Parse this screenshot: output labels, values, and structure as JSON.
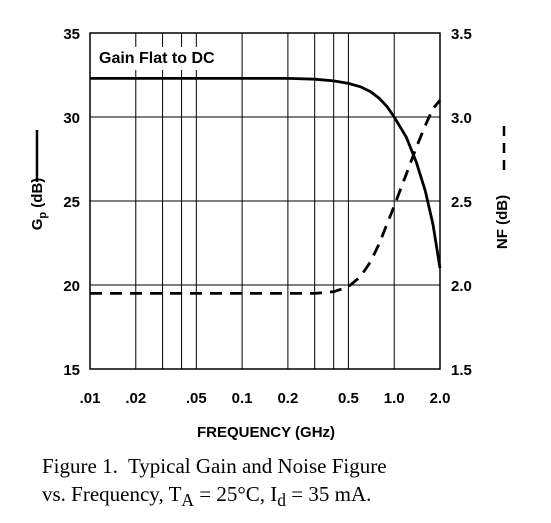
{
  "chart_data": {
    "type": "line",
    "annotation": "Gain Flat to DC",
    "xlabel": "FREQUENCY (GHz)",
    "x_scale": "log",
    "xlim": [
      0.01,
      2.0
    ],
    "x_ticks": [
      {
        "value": 0.01,
        "label": ".01"
      },
      {
        "value": 0.02,
        "label": ".02"
      },
      {
        "value": 0.05,
        "label": ".05"
      },
      {
        "value": 0.1,
        "label": "0.1"
      },
      {
        "value": 0.2,
        "label": "0.2"
      },
      {
        "value": 0.5,
        "label": "0.5"
      },
      {
        "value": 1.0,
        "label": "1.0"
      },
      {
        "value": 2.0,
        "label": "2.0"
      }
    ],
    "x_gridlines": [
      0.01,
      0.02,
      0.03,
      0.04,
      0.05,
      0.1,
      0.2,
      0.3,
      0.4,
      0.5,
      1.0,
      2.0
    ],
    "y_left": {
      "label_main": "G",
      "label_sub": "p",
      "label_unit": " (dB)",
      "lim": [
        15,
        35
      ],
      "ticks": [
        "15",
        "20",
        "25",
        "30",
        "35"
      ]
    },
    "y_right": {
      "label": "NF (dB)",
      "lim": [
        1.5,
        3.5
      ],
      "ticks": [
        "1.5",
        "2.0",
        "2.5",
        "3.0",
        "3.5"
      ]
    },
    "grid": true,
    "series": [
      {
        "axis": "left",
        "style": "solid",
        "x": [
          0.01,
          0.05,
          0.1,
          0.2,
          0.3,
          0.4,
          0.5,
          0.6,
          0.7,
          0.8,
          0.9,
          1.0,
          1.2,
          1.4,
          1.6,
          1.8,
          2.0
        ],
        "y": [
          32.3,
          32.3,
          32.3,
          32.3,
          32.25,
          32.15,
          32.0,
          31.8,
          31.5,
          31.1,
          30.6,
          30.0,
          28.8,
          27.3,
          25.6,
          23.6,
          21.0
        ]
      },
      {
        "axis": "right",
        "style": "dashed",
        "x": [
          0.01,
          0.05,
          0.1,
          0.2,
          0.3,
          0.4,
          0.5,
          0.6,
          0.7,
          0.8,
          1.0,
          1.2,
          1.4,
          1.6,
          1.8,
          2.0
        ],
        "y": [
          1.95,
          1.95,
          1.95,
          1.95,
          1.95,
          1.96,
          1.99,
          2.05,
          2.14,
          2.25,
          2.47,
          2.66,
          2.82,
          2.95,
          3.05,
          3.1
        ]
      }
    ]
  },
  "caption": {
    "line1": "Figure 1.  Typical Gain and Noise Figure",
    "line2_prefix": "vs. Frequency, T",
    "line2_sub1": "A",
    "line2_mid": " = 25°C, I",
    "line2_sub2": "d",
    "line2_suffix": " = 35 mA."
  }
}
